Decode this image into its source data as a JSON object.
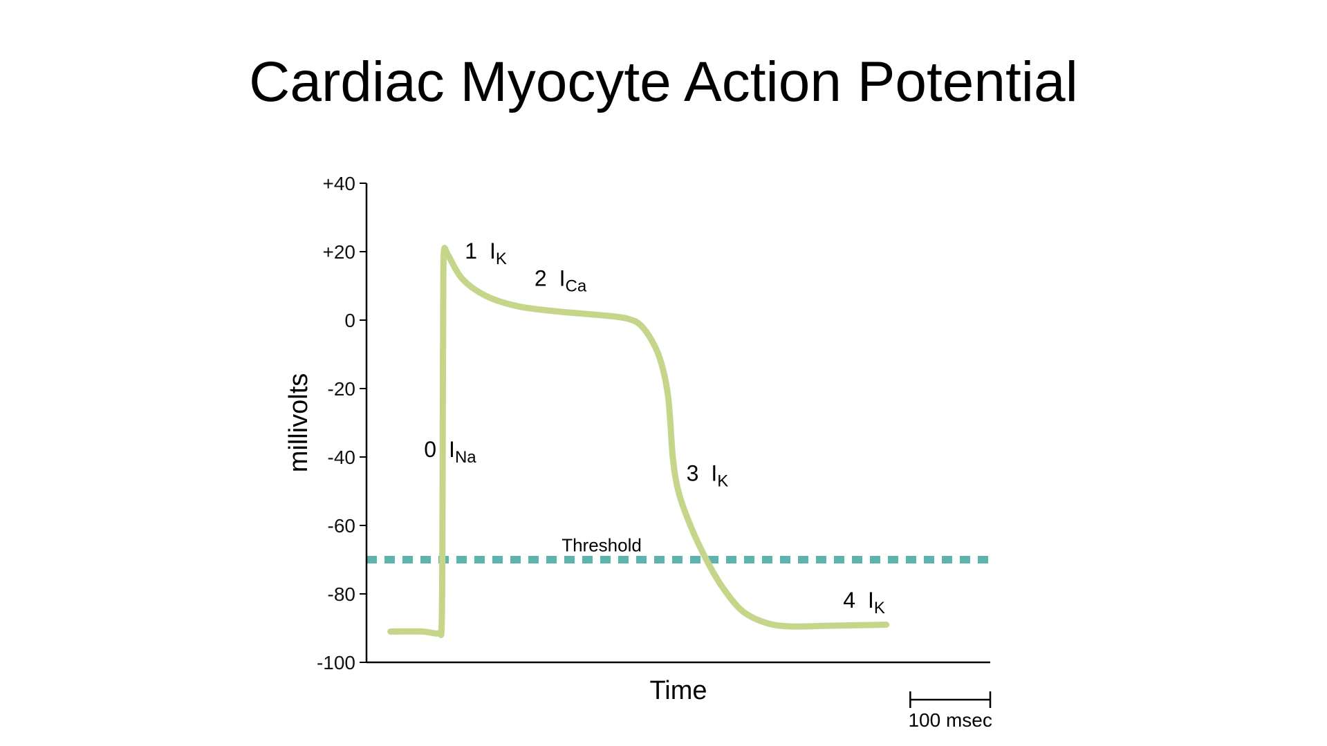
{
  "title": "Cardiac Myocyte Action Potential",
  "chart_data": {
    "type": "line",
    "title": "Cardiac Myocyte Action Potential",
    "xlabel": "Time",
    "ylabel": "millivolts",
    "ylim": [
      -100,
      40
    ],
    "yticks": [
      {
        "value": 40,
        "label": "+40"
      },
      {
        "value": 20,
        "label": "+20"
      },
      {
        "value": 0,
        "label": "0"
      },
      {
        "value": -20,
        "label": "-20"
      },
      {
        "value": -40,
        "label": "-40"
      },
      {
        "value": -60,
        "label": "-60"
      },
      {
        "value": -80,
        "label": "-80"
      },
      {
        "value": -100,
        "label": "-100"
      }
    ],
    "x_unit": "msec",
    "xlim": [
      -90,
      690
    ],
    "series": [
      {
        "color": "#c5d68b",
        "points": [
          [
            -60,
            -91
          ],
          [
            -20,
            -91
          ],
          [
            0,
            -91.5
          ],
          [
            4,
            -89
          ],
          [
            5,
            -60
          ],
          [
            5.5,
            -20
          ],
          [
            6,
            10
          ],
          [
            7,
            20.5
          ],
          [
            12,
            19
          ],
          [
            30,
            12
          ],
          [
            60,
            7
          ],
          [
            100,
            4
          ],
          [
            150,
            2.5
          ],
          [
            200,
            1.5
          ],
          [
            235,
            0.5
          ],
          [
            255,
            -2
          ],
          [
            275,
            -10
          ],
          [
            287,
            -22
          ],
          [
            293,
            -40
          ],
          [
            300,
            -50
          ],
          [
            315,
            -60
          ],
          [
            335,
            -70
          ],
          [
            355,
            -78
          ],
          [
            380,
            -85
          ],
          [
            410,
            -88.5
          ],
          [
            440,
            -89.5
          ],
          [
            490,
            -89.3
          ],
          [
            560,
            -89
          ]
        ]
      }
    ],
    "threshold": {
      "value": -70,
      "label": "Threshold",
      "color": "#5fb3ad"
    },
    "annotations": [
      {
        "phase": "0",
        "current": "I",
        "sub": "Na",
        "x": -18,
        "y": -40
      },
      {
        "phase": "1",
        "current": "I",
        "sub": "K",
        "x": 33,
        "y": 18
      },
      {
        "phase": "2",
        "current": "I",
        "sub": "Ca",
        "x": 120,
        "y": 10
      },
      {
        "phase": "3",
        "current": "I",
        "sub": "K",
        "x": 310,
        "y": -47
      },
      {
        "phase": "4",
        "current": "I",
        "sub": "K",
        "x": 506,
        "y": -84
      }
    ],
    "scale_bar": {
      "label": "100 msec",
      "length": 100
    }
  }
}
